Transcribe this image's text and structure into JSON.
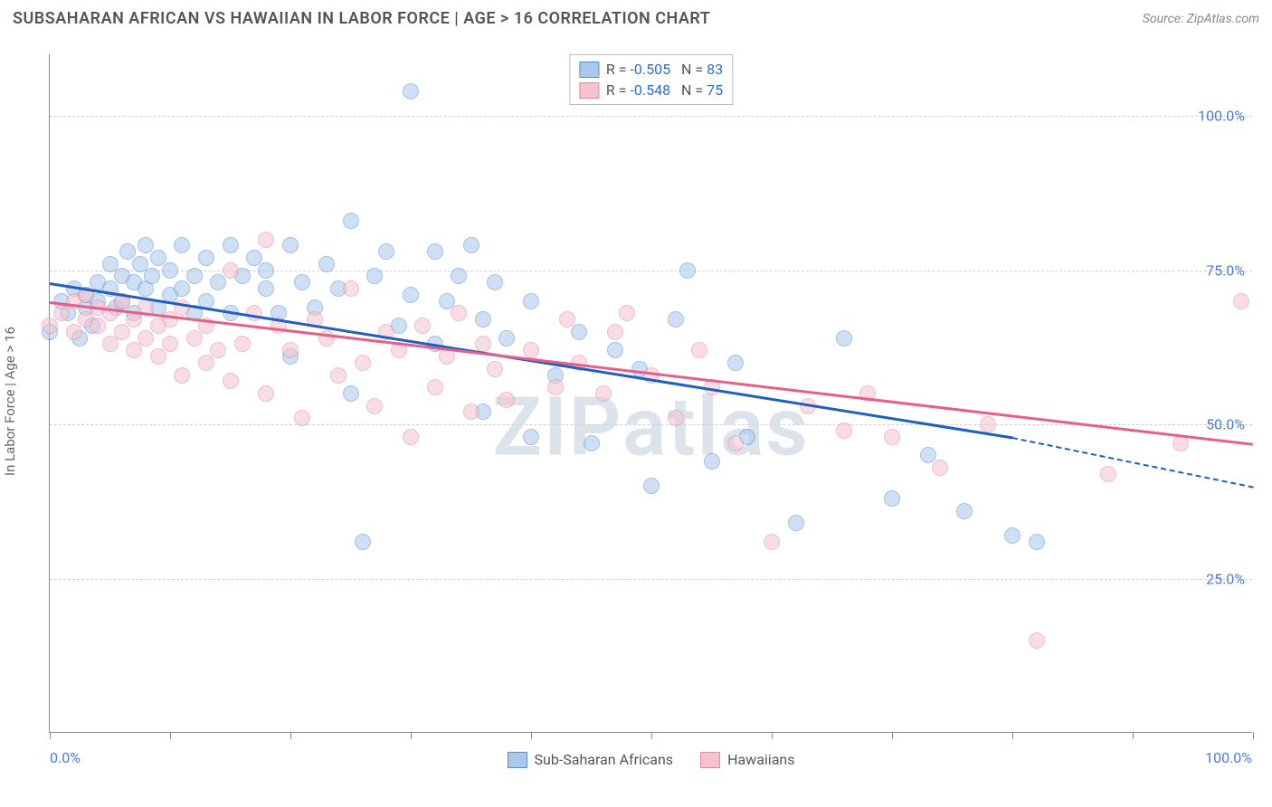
{
  "header": {
    "title": "SUBSAHARAN AFRICAN VS HAWAIIAN IN LABOR FORCE | AGE > 16 CORRELATION CHART",
    "source": "Source: ZipAtlas.com"
  },
  "chart": {
    "type": "scatter",
    "ylabel": "In Labor Force | Age > 16",
    "watermark": "ZIPatlas",
    "xlim": [
      0,
      100
    ],
    "ylim": [
      0,
      110
    ],
    "ytick_values": [
      25,
      50,
      75,
      100
    ],
    "ytick_labels": [
      "25.0%",
      "50.0%",
      "75.0%",
      "100.0%"
    ],
    "ytick_color": "#4a7bd0",
    "xtick_positions": [
      0,
      10,
      20,
      30,
      40,
      50,
      60,
      70,
      80,
      90,
      100
    ],
    "x_min_label": "0.0%",
    "x_max_label": "100.0%",
    "x_label_color": "#4a7bd0",
    "grid_color": "#d0d0d0",
    "background_color": "#ffffff",
    "marker_radius": 9,
    "series": [
      {
        "name": "Sub-Saharan Africans",
        "fill": "#a9c8ec",
        "stroke": "#5a8fd6",
        "line_color": "#1f5fc4",
        "R": "-0.505",
        "N": "83",
        "trend": {
          "x0": 0,
          "y0": 73,
          "x1": 80,
          "y1": 48,
          "ext_x1": 100,
          "ext_y1": 40
        },
        "points": [
          [
            0,
            65
          ],
          [
            1,
            70
          ],
          [
            1.5,
            68
          ],
          [
            2,
            72
          ],
          [
            2.5,
            64
          ],
          [
            3,
            69
          ],
          [
            3,
            71
          ],
          [
            3.5,
            66
          ],
          [
            4,
            70
          ],
          [
            4,
            73
          ],
          [
            5,
            76
          ],
          [
            5,
            72
          ],
          [
            5.5,
            69
          ],
          [
            6,
            74
          ],
          [
            6,
            70
          ],
          [
            6.5,
            78
          ],
          [
            7,
            73
          ],
          [
            7,
            68
          ],
          [
            7.5,
            76
          ],
          [
            8,
            72
          ],
          [
            8,
            79
          ],
          [
            8.5,
            74
          ],
          [
            9,
            69
          ],
          [
            9,
            77
          ],
          [
            10,
            71
          ],
          [
            10,
            75
          ],
          [
            11,
            79
          ],
          [
            11,
            72
          ],
          [
            12,
            68
          ],
          [
            12,
            74
          ],
          [
            13,
            77
          ],
          [
            13,
            70
          ],
          [
            14,
            73
          ],
          [
            15,
            79
          ],
          [
            15,
            68
          ],
          [
            16,
            74
          ],
          [
            17,
            77
          ],
          [
            18,
            72
          ],
          [
            18,
            75
          ],
          [
            19,
            68
          ],
          [
            20,
            79
          ],
          [
            20,
            61
          ],
          [
            21,
            73
          ],
          [
            22,
            69
          ],
          [
            23,
            76
          ],
          [
            24,
            72
          ],
          [
            25,
            55
          ],
          [
            25,
            83
          ],
          [
            26,
            31
          ],
          [
            27,
            74
          ],
          [
            28,
            78
          ],
          [
            29,
            66
          ],
          [
            30,
            104
          ],
          [
            30,
            71
          ],
          [
            32,
            78
          ],
          [
            32,
            63
          ],
          [
            33,
            70
          ],
          [
            34,
            74
          ],
          [
            35,
            79
          ],
          [
            36,
            52
          ],
          [
            36,
            67
          ],
          [
            37,
            73
          ],
          [
            38,
            64
          ],
          [
            40,
            48
          ],
          [
            40,
            70
          ],
          [
            42,
            58
          ],
          [
            44,
            65
          ],
          [
            45,
            47
          ],
          [
            47,
            62
          ],
          [
            49,
            59
          ],
          [
            50,
            40
          ],
          [
            52,
            67
          ],
          [
            53,
            75
          ],
          [
            55,
            44
          ],
          [
            57,
            60
          ],
          [
            58,
            48
          ],
          [
            62,
            34
          ],
          [
            66,
            64
          ],
          [
            70,
            38
          ],
          [
            73,
            45
          ],
          [
            76,
            36
          ],
          [
            80,
            32
          ],
          [
            82,
            31
          ]
        ]
      },
      {
        "name": "Hawaiians",
        "fill": "#f5c2ce",
        "stroke": "#e48aa0",
        "line_color": "#e75f87",
        "R": "-0.548",
        "N": "75",
        "trend": {
          "x0": 0,
          "y0": 70,
          "x1": 100,
          "y1": 47,
          "ext_x1": 100,
          "ext_y1": 47
        },
        "points": [
          [
            0,
            66
          ],
          [
            1,
            68
          ],
          [
            2,
            70
          ],
          [
            2,
            65
          ],
          [
            3,
            67
          ],
          [
            3,
            71
          ],
          [
            4,
            66
          ],
          [
            4,
            69
          ],
          [
            5,
            68
          ],
          [
            5,
            63
          ],
          [
            6,
            65
          ],
          [
            6,
            70
          ],
          [
            7,
            67
          ],
          [
            7,
            62
          ],
          [
            8,
            64
          ],
          [
            8,
            69
          ],
          [
            9,
            66
          ],
          [
            9,
            61
          ],
          [
            10,
            67
          ],
          [
            10,
            63
          ],
          [
            11,
            58
          ],
          [
            11,
            69
          ],
          [
            12,
            64
          ],
          [
            13,
            66
          ],
          [
            13,
            60
          ],
          [
            14,
            62
          ],
          [
            15,
            75
          ],
          [
            15,
            57
          ],
          [
            16,
            63
          ],
          [
            17,
            68
          ],
          [
            18,
            80
          ],
          [
            18,
            55
          ],
          [
            19,
            66
          ],
          [
            20,
            62
          ],
          [
            21,
            51
          ],
          [
            22,
            67
          ],
          [
            23,
            64
          ],
          [
            24,
            58
          ],
          [
            25,
            72
          ],
          [
            26,
            60
          ],
          [
            27,
            53
          ],
          [
            28,
            65
          ],
          [
            29,
            62
          ],
          [
            30,
            48
          ],
          [
            31,
            66
          ],
          [
            32,
            56
          ],
          [
            33,
            61
          ],
          [
            34,
            68
          ],
          [
            35,
            52
          ],
          [
            36,
            63
          ],
          [
            37,
            59
          ],
          [
            38,
            54
          ],
          [
            40,
            62
          ],
          [
            42,
            56
          ],
          [
            43,
            67
          ],
          [
            44,
            60
          ],
          [
            46,
            55
          ],
          [
            47,
            65
          ],
          [
            48,
            68
          ],
          [
            50,
            58
          ],
          [
            52,
            51
          ],
          [
            54,
            62
          ],
          [
            55,
            56
          ],
          [
            57,
            47
          ],
          [
            60,
            31
          ],
          [
            63,
            53
          ],
          [
            66,
            49
          ],
          [
            68,
            55
          ],
          [
            70,
            48
          ],
          [
            74,
            43
          ],
          [
            78,
            50
          ],
          [
            82,
            15
          ],
          [
            88,
            42
          ],
          [
            94,
            47
          ],
          [
            99,
            70
          ]
        ]
      }
    ],
    "legend_bottom": [
      {
        "label": "Sub-Saharan Africans",
        "fill": "#a9c8ec",
        "stroke": "#5a8fd6"
      },
      {
        "label": "Hawaiians",
        "fill": "#f5c2ce",
        "stroke": "#e48aa0"
      }
    ]
  }
}
